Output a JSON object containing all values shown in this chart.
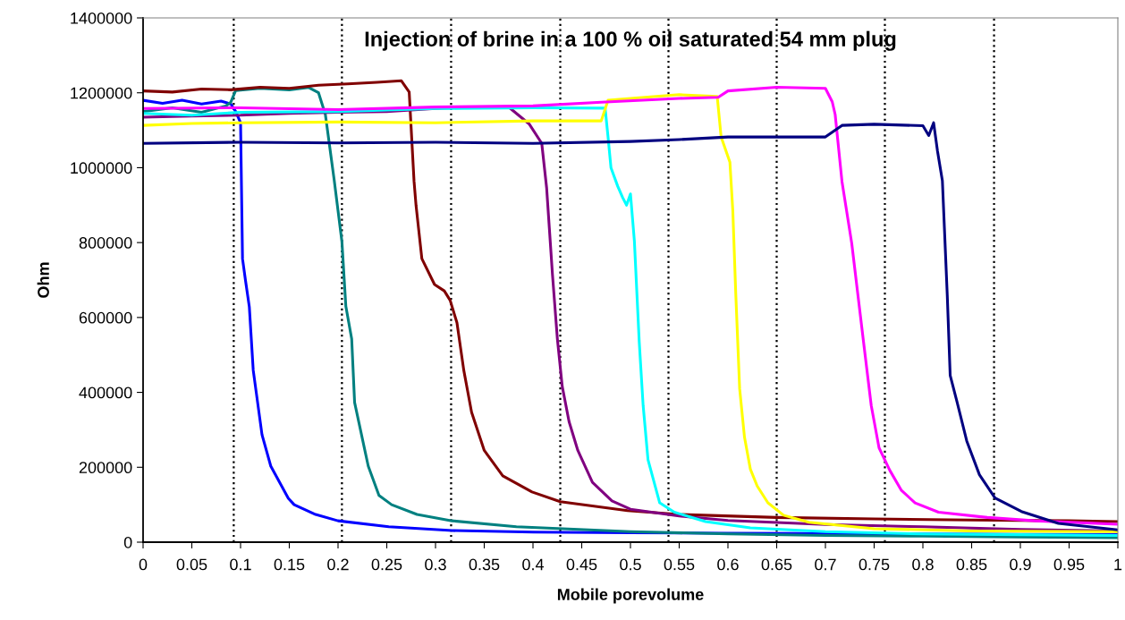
{
  "chart_data": {
    "type": "line",
    "title": "Injection of brine in a 100 % oil saturated 54 mm plug",
    "xlabel": "Mobile porevolume",
    "ylabel": "Ohm",
    "xlim": [
      0,
      1
    ],
    "ylim": [
      0,
      1400000
    ],
    "xticks": [
      0,
      0.05,
      0.1,
      0.15,
      0.2,
      0.25,
      0.3,
      0.35,
      0.4,
      0.45,
      0.5,
      0.55,
      0.6,
      0.65,
      0.7,
      0.75,
      0.8,
      0.85,
      0.9,
      0.95,
      1
    ],
    "yticks": [
      0,
      200000,
      400000,
      600000,
      800000,
      1000000,
      1200000,
      1400000
    ],
    "grid": false,
    "legend": false,
    "marker": "none",
    "line_style": "solid",
    "ref_lines": [
      {
        "axis": "x",
        "value": 0.093,
        "color": "#000000",
        "line_style": "dotted"
      },
      {
        "axis": "x",
        "value": 0.204,
        "color": "#000000",
        "line_style": "dotted"
      },
      {
        "axis": "x",
        "value": 0.316,
        "color": "#000000",
        "line_style": "dotted"
      },
      {
        "axis": "x",
        "value": 0.428,
        "color": "#000000",
        "line_style": "dotted"
      },
      {
        "axis": "x",
        "value": 0.539,
        "color": "#000000",
        "line_style": "dotted"
      },
      {
        "axis": "x",
        "value": 0.65,
        "color": "#000000",
        "line_style": "dotted"
      },
      {
        "axis": "x",
        "value": 0.761,
        "color": "#000000",
        "line_style": "dotted"
      },
      {
        "axis": "x",
        "value": 0.873,
        "color": "#000000",
        "line_style": "dotted"
      }
    ],
    "series": [
      {
        "color": "#0000ff",
        "x": [
          0,
          0.02,
          0.04,
          0.06,
          0.08,
          0.09,
          0.095,
          0.1,
          0.102,
          0.105,
          0.109,
          0.113,
          0.122,
          0.131,
          0.149,
          0.155,
          0.177,
          0.2,
          0.252,
          0.317,
          0.4,
          0.5,
          0.6,
          0.7,
          0.8,
          0.9,
          1
        ],
        "values": [
          1180000,
          1172000,
          1180000,
          1170000,
          1178000,
          1170000,
          1150000,
          1120000,
          757000,
          700000,
          628000,
          459000,
          287000,
          203000,
          117000,
          100000,
          74000,
          57000,
          41000,
          31000,
          27000,
          25000,
          24000,
          23000,
          22000,
          21000,
          20000
        ]
      },
      {
        "color": "#008080",
        "x": [
          0,
          0.03,
          0.06,
          0.085,
          0.09,
          0.095,
          0.12,
          0.15,
          0.17,
          0.18,
          0.187,
          0.196,
          0.204,
          0.208,
          0.214,
          0.217,
          0.231,
          0.242,
          0.255,
          0.281,
          0.317,
          0.383,
          0.5,
          0.6,
          0.7,
          0.8,
          0.9,
          1
        ],
        "values": [
          1150000,
          1160000,
          1148000,
          1165000,
          1175000,
          1206000,
          1212000,
          1208000,
          1214000,
          1200000,
          1142000,
          968000,
          802000,
          630000,
          543000,
          373000,
          203000,
          125000,
          100000,
          74000,
          57000,
          41000,
          28000,
          22000,
          18000,
          16000,
          14000,
          12000
        ]
      },
      {
        "color": "#800000",
        "x": [
          0,
          0.03,
          0.06,
          0.09,
          0.12,
          0.15,
          0.18,
          0.21,
          0.24,
          0.265,
          0.273,
          0.278,
          0.28,
          0.286,
          0.299,
          0.309,
          0.315,
          0.322,
          0.329,
          0.337,
          0.35,
          0.369,
          0.399,
          0.428,
          0.497,
          0.55,
          0.65,
          0.75,
          0.85,
          0.95,
          1
        ],
        "values": [
          1205000,
          1202000,
          1210000,
          1208000,
          1215000,
          1212000,
          1220000,
          1224000,
          1228000,
          1232000,
          1202000,
          963000,
          900000,
          757000,
          688000,
          671000,
          646000,
          586000,
          459000,
          347000,
          245000,
          177000,
          134000,
          108000,
          84000,
          74000,
          66000,
          62000,
          59000,
          57000,
          55000
        ]
      },
      {
        "color": "#800080",
        "x": [
          0,
          0.05,
          0.1,
          0.15,
          0.2,
          0.25,
          0.3,
          0.35,
          0.376,
          0.396,
          0.409,
          0.414,
          0.42,
          0.425,
          0.43,
          0.437,
          0.446,
          0.461,
          0.481,
          0.5,
          0.55,
          0.6,
          0.7,
          0.8,
          0.9,
          1
        ],
        "values": [
          1135000,
          1138000,
          1140000,
          1145000,
          1148000,
          1150000,
          1158000,
          1162000,
          1160000,
          1117000,
          1065000,
          946000,
          714000,
          543000,
          416000,
          322000,
          245000,
          160000,
          110000,
          88000,
          70000,
          58000,
          47000,
          41000,
          34000,
          30000
        ]
      },
      {
        "color": "#00ffff",
        "x": [
          0,
          0.05,
          0.1,
          0.2,
          0.3,
          0.4,
          0.474,
          0.477,
          0.48,
          0.487,
          0.492,
          0.496,
          0.5,
          0.504,
          0.509,
          0.513,
          0.518,
          0.53,
          0.545,
          0.577,
          0.623,
          0.7,
          0.8,
          0.9,
          1
        ],
        "values": [
          1145000,
          1140000,
          1148000,
          1150000,
          1158000,
          1160000,
          1159000,
          1082000,
          1000000,
          950000,
          920000,
          900000,
          930000,
          805000,
          535000,
          365000,
          220000,
          105000,
          80000,
          55000,
          38000,
          28000,
          22000,
          20000,
          18000
        ]
      },
      {
        "color": "#ffff00",
        "x": [
          0,
          0.05,
          0.1,
          0.2,
          0.3,
          0.4,
          0.47,
          0.477,
          0.5,
          0.55,
          0.589,
          0.593,
          0.602,
          0.605,
          0.608,
          0.612,
          0.617,
          0.623,
          0.63,
          0.641,
          0.657,
          0.683,
          0.75,
          0.85,
          1
        ],
        "values": [
          1113000,
          1118000,
          1120000,
          1122000,
          1120000,
          1125000,
          1125000,
          1180000,
          1185000,
          1195000,
          1190000,
          1082000,
          1015000,
          885000,
          665000,
          410000,
          280000,
          195000,
          150000,
          105000,
          72000,
          53000,
          36000,
          30000,
          28000
        ]
      },
      {
        "color": "#ff00ff",
        "x": [
          0,
          0.1,
          0.2,
          0.3,
          0.4,
          0.47,
          0.55,
          0.59,
          0.6,
          0.65,
          0.7,
          0.707,
          0.71,
          0.717,
          0.727,
          0.739,
          0.747,
          0.755,
          0.766,
          0.778,
          0.792,
          0.816,
          0.866,
          0.915,
          1
        ],
        "values": [
          1158000,
          1160000,
          1155000,
          1162000,
          1165000,
          1175000,
          1185000,
          1188000,
          1205000,
          1215000,
          1212000,
          1176000,
          1142000,
          963000,
          798000,
          537000,
          365000,
          252000,
          192000,
          138000,
          105000,
          80000,
          66000,
          57000,
          48000
        ]
      },
      {
        "color": "#000080",
        "x": [
          0,
          0.1,
          0.2,
          0.3,
          0.4,
          0.5,
          0.55,
          0.6,
          0.7,
          0.717,
          0.75,
          0.8,
          0.806,
          0.811,
          0.815,
          0.82,
          0.825,
          0.828,
          0.835,
          0.845,
          0.858,
          0.874,
          0.901,
          0.939,
          1
        ],
        "values": [
          1065000,
          1068000,
          1066000,
          1068000,
          1065000,
          1070000,
          1075000,
          1082000,
          1082000,
          1113000,
          1116000,
          1112000,
          1086000,
          1120000,
          1044000,
          965000,
          660000,
          445000,
          375000,
          270000,
          180000,
          118000,
          82000,
          50000,
          33000
        ]
      }
    ]
  }
}
